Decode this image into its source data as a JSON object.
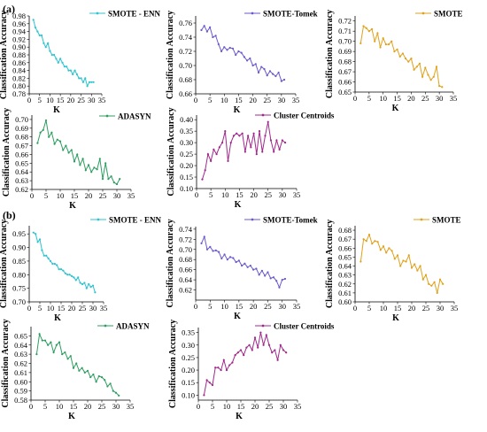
{
  "figure": {
    "panel_labels": [
      "(a)",
      "(b)"
    ],
    "colors": {
      "SMOTE - ENN": "#2ec4cf",
      "SMOTE-Tomek": "#6a5acd",
      "SMOTE": "#e0a21c",
      "ADASYN": "#2e9e60",
      "Cluster Centroids": "#a0288c"
    }
  },
  "chart_data": [
    {
      "panel": "(a)",
      "type": "line",
      "series": [
        {
          "name": "SMOTE - ENN",
          "x": [
            2,
            3,
            4,
            5,
            6,
            7,
            8,
            9,
            10,
            11,
            12,
            13,
            14,
            15,
            16,
            17,
            18,
            19,
            20,
            21,
            22,
            23,
            24,
            25,
            26,
            27,
            28,
            29,
            30,
            31
          ],
          "values": [
            0.97,
            0.95,
            0.94,
            0.93,
            0.93,
            0.91,
            0.9,
            0.91,
            0.89,
            0.88,
            0.88,
            0.87,
            0.86,
            0.87,
            0.86,
            0.85,
            0.85,
            0.84,
            0.84,
            0.83,
            0.84,
            0.83,
            0.82,
            0.82,
            0.81,
            0.82,
            0.8,
            0.81,
            0.81,
            0.81
          ]
        }
      ],
      "xlabel": "K",
      "ylabel": "Classification Accuracy",
      "xlim": [
        0,
        35
      ],
      "ylim": [
        0.78,
        0.98
      ],
      "xticks": [
        0,
        5,
        10,
        15,
        20,
        25,
        30,
        35
      ],
      "yticks": [
        0.78,
        0.8,
        0.82,
        0.84,
        0.86,
        0.88,
        0.9,
        0.92,
        0.94,
        0.96,
        0.98
      ],
      "ytick_labels": [
        "0.78",
        "0.80",
        "0.82",
        "0.84",
        "0.86",
        "0.88",
        "0.90",
        "0.92",
        "0.94",
        "0.96",
        "0.98"
      ],
      "legend": "top-right"
    },
    {
      "panel": "(a)",
      "type": "line",
      "series": [
        {
          "name": "SMOTE-Tomek",
          "x": [
            2,
            3,
            4,
            5,
            6,
            7,
            8,
            9,
            10,
            11,
            12,
            13,
            14,
            15,
            16,
            17,
            18,
            19,
            20,
            21,
            22,
            23,
            24,
            25,
            26,
            27,
            28,
            29,
            30,
            31
          ],
          "values": [
            0.75,
            0.756,
            0.748,
            0.754,
            0.74,
            0.742,
            0.73,
            0.72,
            0.726,
            0.722,
            0.725,
            0.724,
            0.715,
            0.72,
            0.718,
            0.712,
            0.707,
            0.71,
            0.7,
            0.702,
            0.69,
            0.698,
            0.695,
            0.686,
            0.692,
            0.688,
            0.685,
            0.69,
            0.678,
            0.68
          ]
        }
      ],
      "xlabel": "K",
      "ylabel": "Classification Accuracy",
      "xlim": [
        0,
        35
      ],
      "ylim": [
        0.66,
        0.77
      ],
      "xticks": [
        0,
        5,
        10,
        15,
        20,
        25,
        30,
        35
      ],
      "yticks": [
        0.66,
        0.68,
        0.7,
        0.72,
        0.74,
        0.76
      ],
      "ytick_labels": [
        "0.66",
        "0.68",
        "0.70",
        "0.72",
        "0.74",
        "0.76"
      ],
      "legend": "top-right"
    },
    {
      "panel": "(a)",
      "type": "line",
      "series": [
        {
          "name": "SMOTE",
          "x": [
            2,
            3,
            4,
            5,
            6,
            7,
            8,
            9,
            10,
            11,
            12,
            13,
            14,
            15,
            16,
            17,
            18,
            19,
            20,
            21,
            22,
            23,
            24,
            25,
            26,
            27,
            28,
            29,
            30,
            31
          ],
          "values": [
            0.698,
            0.715,
            0.713,
            0.71,
            0.712,
            0.7,
            0.708,
            0.694,
            0.703,
            0.697,
            0.697,
            0.7,
            0.69,
            0.692,
            0.685,
            0.688,
            0.683,
            0.68,
            0.683,
            0.672,
            0.675,
            0.678,
            0.665,
            0.674,
            0.667,
            0.662,
            0.665,
            0.675,
            0.656,
            0.655
          ]
        }
      ],
      "xlabel": "K",
      "ylabel": "Classification Accuracy",
      "xlim": [
        0,
        35
      ],
      "ylim": [
        0.65,
        0.725
      ],
      "xticks": [
        0,
        5,
        10,
        15,
        20,
        25,
        30,
        35
      ],
      "yticks": [
        0.65,
        0.66,
        0.67,
        0.68,
        0.69,
        0.7,
        0.71,
        0.72
      ],
      "ytick_labels": [
        "0.65",
        "0.66",
        "0.67",
        "0.68",
        "0.69",
        "0.70",
        "0.71",
        "0.72"
      ],
      "legend": "top-right"
    },
    {
      "panel": "(a)",
      "type": "line",
      "series": [
        {
          "name": "ADASYN",
          "x": [
            2,
            3,
            4,
            5,
            6,
            7,
            8,
            9,
            10,
            11,
            12,
            13,
            14,
            15,
            16,
            17,
            18,
            19,
            20,
            21,
            22,
            23,
            24,
            25,
            26,
            27,
            28,
            29,
            30,
            31
          ],
          "values": [
            0.673,
            0.685,
            0.688,
            0.699,
            0.68,
            0.685,
            0.672,
            0.677,
            0.675,
            0.665,
            0.67,
            0.662,
            0.665,
            0.652,
            0.66,
            0.648,
            0.655,
            0.642,
            0.648,
            0.64,
            0.645,
            0.643,
            0.655,
            0.632,
            0.65,
            0.632,
            0.635,
            0.628,
            0.626,
            0.632
          ]
        }
      ],
      "xlabel": "K",
      "ylabel": "Classification Accuracy",
      "xlim": [
        0,
        35
      ],
      "ylim": [
        0.62,
        0.705
      ],
      "xticks": [
        0,
        5,
        10,
        15,
        20,
        25,
        30,
        35
      ],
      "yticks": [
        0.62,
        0.63,
        0.64,
        0.65,
        0.66,
        0.67,
        0.68,
        0.69,
        0.7
      ],
      "ytick_labels": [
        "0.62",
        "0.63",
        "0.64",
        "0.65",
        "0.66",
        "0.67",
        "0.68",
        "0.69",
        "0.70"
      ],
      "legend": "top-right"
    },
    {
      "panel": "(a)",
      "type": "line",
      "series": [
        {
          "name": "Cluster Centroids",
          "x": [
            2,
            3,
            4,
            5,
            6,
            7,
            8,
            9,
            10,
            11,
            12,
            13,
            14,
            15,
            16,
            17,
            18,
            19,
            20,
            21,
            22,
            23,
            24,
            25,
            26,
            27,
            28,
            29,
            30,
            31
          ],
          "values": [
            0.14,
            0.18,
            0.25,
            0.22,
            0.27,
            0.25,
            0.28,
            0.3,
            0.35,
            0.22,
            0.3,
            0.33,
            0.34,
            0.33,
            0.34,
            0.26,
            0.33,
            0.28,
            0.34,
            0.25,
            0.35,
            0.26,
            0.33,
            0.39,
            0.31,
            0.26,
            0.31,
            0.27,
            0.31,
            0.3
          ]
        }
      ],
      "xlabel": "K",
      "ylabel": "Classification Accuracy",
      "xlim": [
        0,
        35
      ],
      "ylim": [
        0.1,
        0.42
      ],
      "xticks": [
        0,
        5,
        10,
        15,
        20,
        25,
        30,
        35
      ],
      "yticks": [
        0.1,
        0.15,
        0.2,
        0.25,
        0.3,
        0.35,
        0.4
      ],
      "ytick_labels": [
        "0.10",
        "0.15",
        "0.20",
        "0.25",
        "0.30",
        "0.35",
        "0.40"
      ],
      "legend": "top-right"
    },
    {
      "panel": "(b)",
      "type": "line",
      "series": [
        {
          "name": "SMOTE - ENN",
          "x": [
            2,
            3,
            4,
            5,
            6,
            7,
            8,
            9,
            10,
            11,
            12,
            13,
            14,
            15,
            16,
            17,
            18,
            19,
            20,
            21,
            22,
            23,
            24,
            25,
            26,
            27,
            28,
            29,
            30,
            31
          ],
          "values": [
            0.955,
            0.95,
            0.92,
            0.93,
            0.89,
            0.87,
            0.87,
            0.86,
            0.85,
            0.84,
            0.84,
            0.835,
            0.82,
            0.82,
            0.815,
            0.805,
            0.8,
            0.8,
            0.795,
            0.79,
            0.78,
            0.79,
            0.77,
            0.765,
            0.77,
            0.75,
            0.765,
            0.755,
            0.76,
            0.735
          ]
        }
      ],
      "xlabel": "K",
      "ylabel": "Classification Accuracy",
      "xlim": [
        0,
        35
      ],
      "ylim": [
        0.7,
        0.98
      ],
      "xticks": [
        0,
        5,
        10,
        15,
        20,
        25,
        30,
        35
      ],
      "yticks": [
        0.7,
        0.75,
        0.8,
        0.85,
        0.9,
        0.95
      ],
      "ytick_labels": [
        "0.70",
        "0.75",
        "0.80",
        "0.85",
        "0.90",
        "0.95"
      ],
      "legend": "top-right"
    },
    {
      "panel": "(b)",
      "type": "line",
      "series": [
        {
          "name": "SMOTE-Tomek",
          "x": [
            2,
            3,
            4,
            5,
            6,
            7,
            8,
            9,
            10,
            11,
            12,
            13,
            14,
            15,
            16,
            17,
            18,
            19,
            20,
            21,
            22,
            23,
            24,
            25,
            26,
            27,
            28,
            29,
            30,
            31
          ],
          "values": [
            0.712,
            0.725,
            0.7,
            0.705,
            0.697,
            0.698,
            0.695,
            0.682,
            0.69,
            0.68,
            0.685,
            0.683,
            0.675,
            0.678,
            0.668,
            0.672,
            0.665,
            0.668,
            0.66,
            0.662,
            0.65,
            0.658,
            0.648,
            0.655,
            0.643,
            0.645,
            0.638,
            0.625,
            0.64,
            0.642
          ]
        }
      ],
      "xlabel": "K",
      "ylabel": "Classification Accuracy",
      "xlim": [
        0,
        35
      ],
      "ylim": [
        0.6,
        0.745
      ],
      "xticks": [
        0,
        5,
        10,
        15,
        20,
        25,
        30,
        35
      ],
      "yticks": [
        0.62,
        0.64,
        0.66,
        0.68,
        0.7,
        0.72,
        0.74
      ],
      "ytick_labels": [
        "0.62",
        "0.64",
        "0.66",
        "0.68",
        "0.70",
        "0.72",
        "0.74"
      ],
      "legend": "top-right"
    },
    {
      "panel": "(b)",
      "type": "line",
      "series": [
        {
          "name": "SMOTE",
          "x": [
            2,
            3,
            4,
            5,
            6,
            7,
            8,
            9,
            10,
            11,
            12,
            13,
            14,
            15,
            16,
            17,
            18,
            19,
            20,
            21,
            22,
            23,
            24,
            25,
            26,
            27,
            28,
            29,
            30,
            31
          ],
          "values": [
            0.645,
            0.67,
            0.668,
            0.675,
            0.665,
            0.668,
            0.667,
            0.658,
            0.662,
            0.655,
            0.66,
            0.657,
            0.648,
            0.652,
            0.64,
            0.646,
            0.645,
            0.652,
            0.638,
            0.642,
            0.635,
            0.64,
            0.625,
            0.63,
            0.62,
            0.618,
            0.622,
            0.61,
            0.625,
            0.62
          ]
        }
      ],
      "xlabel": "K",
      "ylabel": "Classification Accuracy",
      "xlim": [
        0,
        35
      ],
      "ylim": [
        0.6,
        0.685
      ],
      "xticks": [
        0,
        5,
        10,
        15,
        20,
        25,
        30,
        35
      ],
      "yticks": [
        0.6,
        0.61,
        0.62,
        0.63,
        0.64,
        0.65,
        0.66,
        0.67,
        0.68
      ],
      "ytick_labels": [
        "0.60",
        "0.61",
        "0.62",
        "0.63",
        "0.64",
        "0.65",
        "0.66",
        "0.67",
        "0.68"
      ],
      "legend": "top-right"
    },
    {
      "panel": "(b)",
      "type": "line",
      "series": [
        {
          "name": "ADASYN",
          "x": [
            2,
            3,
            4,
            5,
            6,
            7,
            8,
            9,
            10,
            11,
            12,
            13,
            14,
            15,
            16,
            17,
            18,
            19,
            20,
            21,
            22,
            23,
            24,
            25,
            26,
            27,
            28,
            29,
            30,
            31
          ],
          "values": [
            0.63,
            0.652,
            0.645,
            0.645,
            0.64,
            0.643,
            0.632,
            0.64,
            0.643,
            0.63,
            0.632,
            0.625,
            0.628,
            0.615,
            0.62,
            0.612,
            0.615,
            0.61,
            0.612,
            0.605,
            0.608,
            0.6,
            0.606,
            0.605,
            0.602,
            0.595,
            0.598,
            0.59,
            0.588,
            0.585
          ]
        }
      ],
      "xlabel": "K",
      "ylabel": "Classification Accuracy",
      "xlim": [
        0,
        35
      ],
      "ylim": [
        0.58,
        0.66
      ],
      "xticks": [
        0,
        5,
        10,
        15,
        20,
        25,
        30,
        35
      ],
      "yticks": [
        0.58,
        0.59,
        0.6,
        0.61,
        0.62,
        0.63,
        0.64,
        0.65
      ],
      "ytick_labels": [
        "0.58",
        "0.59",
        "0.60",
        "0.61",
        "0.62",
        "0.63",
        "0.64",
        "0.65"
      ],
      "legend": "top-right"
    },
    {
      "panel": "(b)",
      "type": "line",
      "series": [
        {
          "name": "Cluster Centroids",
          "x": [
            2,
            3,
            4,
            5,
            6,
            7,
            8,
            9,
            10,
            11,
            12,
            13,
            14,
            15,
            16,
            17,
            18,
            19,
            20,
            21,
            22,
            23,
            24,
            25,
            26,
            27,
            28,
            29,
            30,
            31
          ],
          "values": [
            0.1,
            0.16,
            0.15,
            0.14,
            0.21,
            0.21,
            0.2,
            0.24,
            0.2,
            0.22,
            0.23,
            0.26,
            0.27,
            0.28,
            0.26,
            0.29,
            0.3,
            0.28,
            0.33,
            0.29,
            0.35,
            0.3,
            0.34,
            0.3,
            0.27,
            0.28,
            0.24,
            0.3,
            0.28,
            0.27
          ]
        }
      ],
      "xlabel": "K",
      "ylabel": "Classification Accuracy",
      "xlim": [
        0,
        35
      ],
      "ylim": [
        0.08,
        0.37
      ],
      "xticks": [
        0,
        5,
        10,
        15,
        20,
        25,
        30,
        35
      ],
      "yticks": [
        0.1,
        0.15,
        0.2,
        0.25,
        0.3,
        0.35
      ],
      "ytick_labels": [
        "0.10",
        "0.15",
        "0.20",
        "0.25",
        "0.30",
        "0.35"
      ],
      "legend": "top-right"
    }
  ]
}
